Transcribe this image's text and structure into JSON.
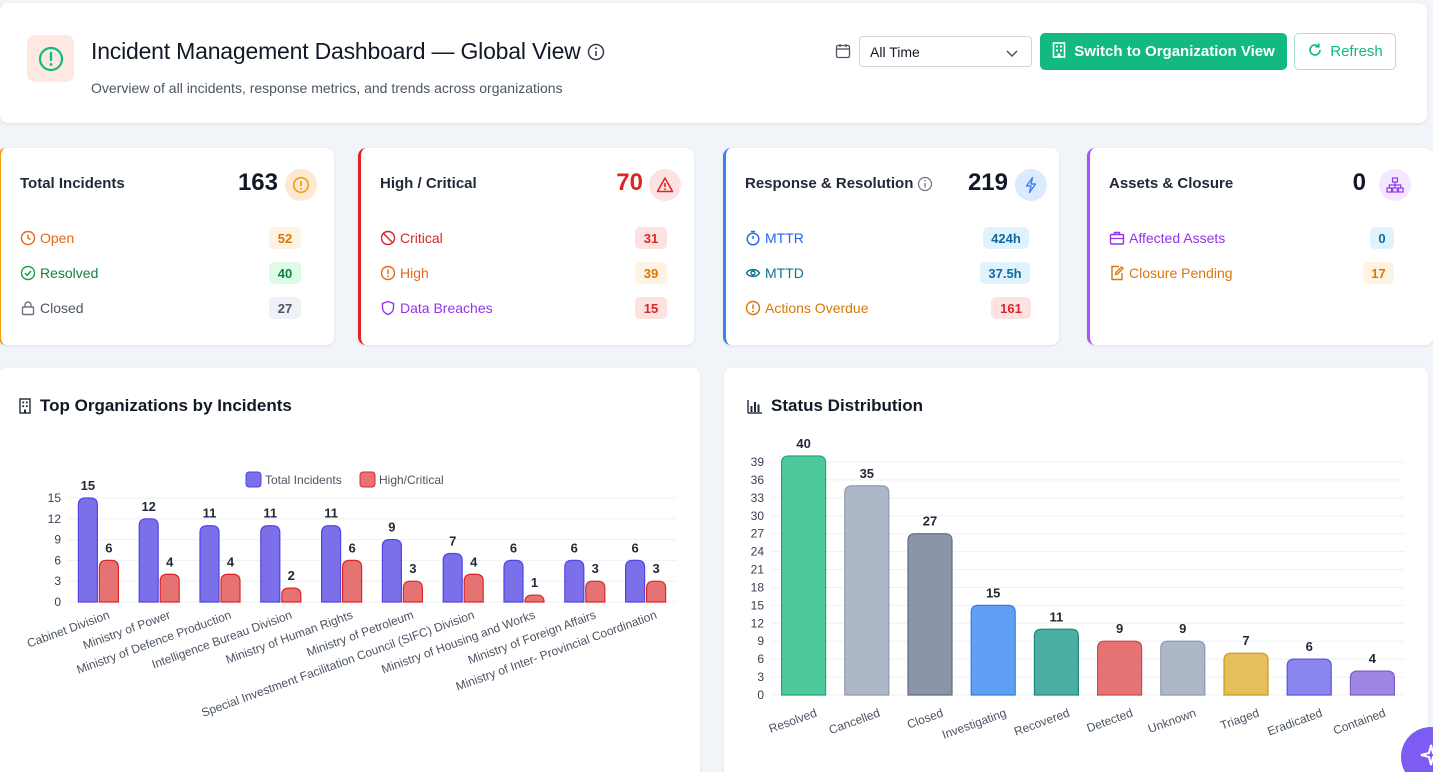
{
  "header": {
    "title": "Incident Management Dashboard — Global View",
    "subtitle": "Overview of all incidents, response metrics, and trends across organizations",
    "time_filter": "All Time",
    "switch_label": "Switch to Organization View",
    "refresh_label": "Refresh"
  },
  "cards": {
    "total": {
      "title": "Total Incidents",
      "value": "163",
      "rows": [
        {
          "label": "Open",
          "value": "52"
        },
        {
          "label": "Resolved",
          "value": "40"
        },
        {
          "label": "Closed",
          "value": "27"
        }
      ]
    },
    "critical": {
      "title": "High / Critical",
      "value": "70",
      "rows": [
        {
          "label": "Critical",
          "value": "31"
        },
        {
          "label": "High",
          "value": "39"
        },
        {
          "label": "Data Breaches",
          "value": "15"
        }
      ]
    },
    "response": {
      "title": "Response & Resolution",
      "value": "219",
      "rows": [
        {
          "label": "MTTR",
          "value": "424h"
        },
        {
          "label": "MTTD",
          "value": "37.5h"
        },
        {
          "label": "Actions Overdue",
          "value": "161"
        }
      ]
    },
    "assets": {
      "title": "Assets & Closure",
      "value": "0",
      "rows": [
        {
          "label": "Affected Assets",
          "value": "0"
        },
        {
          "label": "Closure Pending",
          "value": "17"
        }
      ]
    }
  },
  "panels": {
    "orgs_title": "Top Organizations by Incidents",
    "status_title": "Status Distribution"
  },
  "colors": {
    "accent": "#12b981",
    "total_series": "#7b70ea",
    "critical_series": "#e57373"
  },
  "chart_data": [
    {
      "type": "bar",
      "categories": [
        "Cabinet Division",
        "Ministry of Power",
        "Ministry of Defence Production",
        "Intelligence Bureau Division",
        "Ministry of Human Rights",
        "Ministry of Petroleum",
        "Special Investment Facilitation Council (SIFC) Division",
        "Ministry of Housing and Works",
        "Ministry of Foreign Affairs",
        "Ministry of Inter- Provincial Coordination"
      ],
      "series": [
        {
          "name": "Total Incidents",
          "values": [
            15,
            12,
            11,
            11,
            11,
            9,
            7,
            6,
            6,
            6
          ]
        },
        {
          "name": "High/Critical",
          "values": [
            6,
            4,
            4,
            2,
            6,
            3,
            4,
            1,
            3,
            3
          ]
        }
      ],
      "yticks": [
        0,
        3,
        6,
        9,
        12,
        15
      ],
      "ylim": [
        0,
        15
      ],
      "legend": "top-center",
      "grid": true
    },
    {
      "type": "bar",
      "categories": [
        "Resolved",
        "Cancelled",
        "Closed",
        "Investigating",
        "Recovered",
        "Detected",
        "Unknown",
        "Triaged",
        "Eradicated",
        "Contained"
      ],
      "values": [
        40,
        35,
        27,
        15,
        11,
        9,
        9,
        7,
        6,
        4
      ],
      "colors": [
        "#4cc99b",
        "#adb7c8",
        "#8a95a8",
        "#5f9ff5",
        "#4aaea3",
        "#e57373",
        "#adb7c8",
        "#e6bf5c",
        "#8b86ee",
        "#9e86e3"
      ],
      "yticks": [
        0,
        3,
        6,
        9,
        12,
        15,
        18,
        21,
        24,
        27,
        30,
        33,
        36,
        39
      ],
      "ylim": [
        0,
        40
      ],
      "grid": true
    }
  ]
}
